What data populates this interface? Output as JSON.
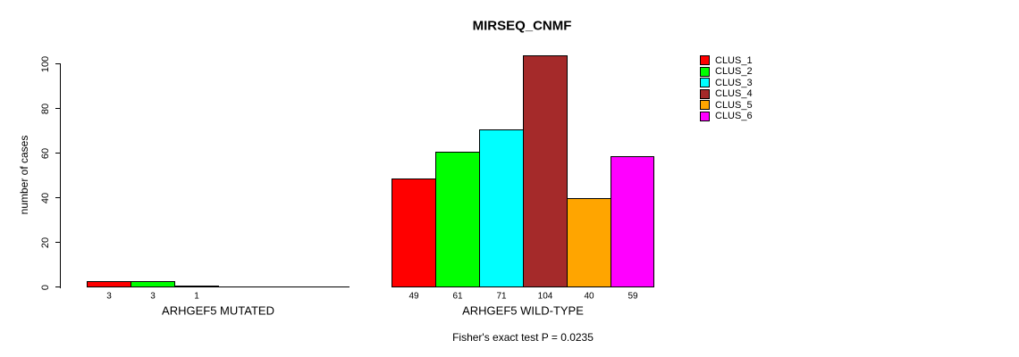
{
  "chart_data": {
    "type": "bar",
    "title": "MIRSEQ_CNMF",
    "ylabel": "number of cases",
    "xlabel": "",
    "ylim": [
      0,
      105
    ],
    "yticks": [
      0,
      20,
      40,
      60,
      80,
      100
    ],
    "grid": false,
    "background": "#ffffff",
    "legend_position": "right",
    "legend": [
      {
        "label": "CLUS_1",
        "color": "#FF0000"
      },
      {
        "label": "CLUS_2",
        "color": "#00FF00"
      },
      {
        "label": "CLUS_3",
        "color": "#00FFFF"
      },
      {
        "label": "CLUS_4",
        "color": "#A52A2A"
      },
      {
        "label": "CLUS_5",
        "color": "#FFA500"
      },
      {
        "label": "CLUS_6",
        "color": "#FF00FF"
      }
    ],
    "series": [
      {
        "name": "CLUS_1",
        "values": [
          3,
          49
        ]
      },
      {
        "name": "CLUS_2",
        "values": [
          3,
          61
        ]
      },
      {
        "name": "CLUS_3",
        "values": [
          1,
          71
        ]
      },
      {
        "name": "CLUS_4",
        "values": [
          0,
          104
        ]
      },
      {
        "name": "CLUS_5",
        "values": [
          0,
          40
        ]
      },
      {
        "name": "CLUS_6",
        "values": [
          0,
          59
        ]
      }
    ],
    "groups": [
      {
        "label": "ARHGEF5 MUTATED",
        "values": [
          3,
          3,
          1,
          0,
          0,
          0
        ]
      },
      {
        "label": "ARHGEF5 WILD-TYPE",
        "values": [
          49,
          61,
          71,
          104,
          40,
          59
        ]
      }
    ],
    "annotation": "Fisher's exact test P = 0.0235"
  }
}
